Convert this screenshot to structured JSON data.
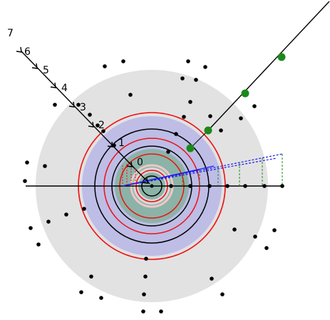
{
  "diagram": {
    "colors": {
      "outer_disk": "#e2e2e2",
      "blue_disk": "#bdbde6",
      "teal_disk": "#8cb3a8",
      "red": "#ee1111",
      "black": "#000000",
      "green": "#1a8a1a",
      "blue": "#1a1aee"
    },
    "ray_labels": [
      "0",
      "1",
      "2",
      "3",
      "4",
      "5",
      "6",
      "7"
    ],
    "green_points": 4
  }
}
